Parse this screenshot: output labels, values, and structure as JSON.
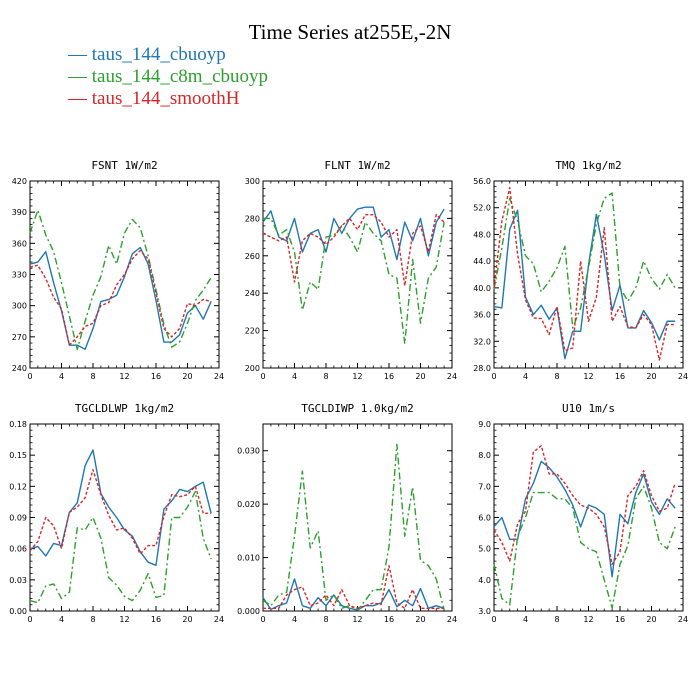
{
  "figure": {
    "title": "Time Series at255E,-2N",
    "legend": [
      {
        "label": "— taus_144_cbuoyp",
        "color": "#1f77b4"
      },
      {
        "label": "— taus_144_c8m_cbuoyp",
        "color": "#2ca02c"
      },
      {
        "label": "— taus_144_smoothH",
        "color": "#d62728"
      }
    ]
  },
  "chart_data": [
    {
      "type": "line",
      "title": "FSNT   1W/m2",
      "x": [
        0,
        1,
        2,
        3,
        4,
        5,
        6,
        7,
        8,
        9,
        10,
        11,
        12,
        13,
        14,
        15,
        16,
        17,
        18,
        19,
        20,
        21,
        22,
        23
      ],
      "xlim": [
        0,
        24
      ],
      "xticks": [
        "0",
        "4",
        "8",
        "12",
        "16",
        "20",
        "24"
      ],
      "ylim": [
        240,
        420
      ],
      "yticks": [
        "240",
        "270",
        "300",
        "330",
        "360",
        "390",
        "420"
      ],
      "series": [
        {
          "name": "taus_144_cbuoyp",
          "color": "#1f77b4",
          "dash": "",
          "values": [
            340,
            342,
            352,
            322,
            295,
            262,
            262,
            258,
            278,
            304,
            306,
            310,
            328,
            350,
            356,
            340,
            305,
            265,
            265,
            272,
            293,
            300,
            287,
            304
          ]
        },
        {
          "name": "taus_144_c8m_cbuoyp",
          "color": "#2ca02c",
          "dash": "7,3,2,3",
          "values": [
            370,
            392,
            368,
            352,
            322,
            290,
            258,
            285,
            310,
            328,
            358,
            340,
            370,
            383,
            375,
            348,
            315,
            282,
            260,
            265,
            283,
            305,
            315,
            327
          ]
        },
        {
          "name": "taus_144_smoothH",
          "color": "#d62728",
          "dash": "3,2",
          "values": [
            337,
            339,
            326,
            308,
            297,
            262,
            270,
            280,
            283,
            300,
            303,
            320,
            330,
            345,
            353,
            345,
            312,
            278,
            270,
            278,
            302,
            300,
            306,
            304
          ]
        }
      ]
    },
    {
      "type": "line",
      "title": "FLNT   1W/m2",
      "x": [
        0,
        1,
        2,
        3,
        4,
        5,
        6,
        7,
        8,
        9,
        10,
        11,
        12,
        13,
        14,
        15,
        16,
        17,
        18,
        19,
        20,
        21,
        22,
        23
      ],
      "xlim": [
        0,
        24
      ],
      "xticks": [
        "0",
        "4",
        "8",
        "12",
        "16",
        "20",
        "24"
      ],
      "ylim": [
        200,
        300
      ],
      "yticks": [
        "200",
        "220",
        "240",
        "260",
        "280",
        "300"
      ],
      "series": [
        {
          "name": "taus_144_cbuoyp",
          "color": "#1f77b4",
          "dash": "",
          "values": [
            278,
            284,
            270,
            268,
            280,
            262,
            272,
            274,
            262,
            280,
            272,
            280,
            285,
            286,
            286,
            270,
            274,
            258,
            278,
            268,
            280,
            260,
            278,
            285
          ]
        },
        {
          "name": "taus_144_c8m_cbuoyp",
          "color": "#2ca02c",
          "dash": "7,3,2,3",
          "values": [
            280,
            280,
            271,
            274,
            262,
            231,
            246,
            242,
            270,
            271,
            276,
            270,
            262,
            278,
            272,
            268,
            250,
            248,
            213,
            258,
            224,
            248,
            254,
            278
          ]
        },
        {
          "name": "taus_144_smoothH",
          "color": "#d62728",
          "dash": "3,2",
          "values": [
            272,
            270,
            268,
            270,
            246,
            268,
            272,
            270,
            266,
            270,
            276,
            280,
            274,
            282,
            282,
            278,
            270,
            274,
            244,
            272,
            276,
            262,
            282,
            278
          ]
        }
      ]
    },
    {
      "type": "line",
      "title": "TMQ   1kg/m2",
      "x": [
        0,
        1,
        2,
        3,
        4,
        5,
        6,
        7,
        8,
        9,
        10,
        11,
        12,
        13,
        14,
        15,
        16,
        17,
        18,
        19,
        20,
        21,
        22,
        23
      ],
      "xlim": [
        0,
        24
      ],
      "xticks": [
        "0",
        "4",
        "8",
        "12",
        "16",
        "20",
        "24"
      ],
      "ylim": [
        28,
        56
      ],
      "yticks": [
        "28.0",
        "32.0",
        "36.0",
        "40.0",
        "44.0",
        "48.0",
        "52.0",
        "56.0"
      ],
      "series": [
        {
          "name": "taus_144_cbuoyp",
          "color": "#1f77b4",
          "dash": "",
          "values": [
            37.2,
            37.0,
            48.8,
            51.6,
            38.6,
            36.0,
            37.4,
            35.3,
            37.0,
            29.4,
            33.5,
            33.5,
            43.4,
            51.0,
            45.0,
            36.6,
            40.4,
            34.0,
            34.0,
            36.6,
            34.8,
            32.2,
            35.0,
            35.0
          ]
        },
        {
          "name": "taus_144_c8m_cbuoyp",
          "color": "#2ca02c",
          "dash": "7,3,2,3",
          "values": [
            39.8,
            46.0,
            53.4,
            50.0,
            44.8,
            43.6,
            39.4,
            41.0,
            43.0,
            46.2,
            34.0,
            37.0,
            43.0,
            49.6,
            53.4,
            54.2,
            40.0,
            38.0,
            40.0,
            44.0,
            41.4,
            39.8,
            42.0,
            40.0
          ]
        },
        {
          "name": "taus_144_smoothH",
          "color": "#d62728",
          "dash": "3,2",
          "values": [
            40.0,
            50.0,
            55.0,
            45.0,
            38.2,
            35.5,
            35.4,
            33.0,
            37.2,
            30.6,
            31.0,
            44.0,
            35.0,
            38.6,
            49.0,
            35.0,
            37.2,
            34.2,
            34.0,
            36.0,
            34.5,
            29.2,
            34.5,
            34.5
          ]
        }
      ]
    },
    {
      "type": "line",
      "title": "TGCLDLWP   1kg/m2",
      "x": [
        0,
        1,
        2,
        3,
        4,
        5,
        6,
        7,
        8,
        9,
        10,
        11,
        12,
        13,
        14,
        15,
        16,
        17,
        18,
        19,
        20,
        21,
        22,
        23
      ],
      "xlim": [
        0,
        24
      ],
      "xticks": [
        "0",
        "4",
        "8",
        "12",
        "16",
        "20",
        "24"
      ],
      "ylim": [
        0,
        0.18
      ],
      "yticks": [
        "0.00",
        "0.03",
        "0.06",
        "0.09",
        "0.12",
        "0.15",
        "0.18"
      ],
      "series": [
        {
          "name": "taus_144_cbuoyp",
          "color": "#1f77b4",
          "dash": "",
          "values": [
            0.06,
            0.062,
            0.053,
            0.065,
            0.063,
            0.095,
            0.104,
            0.14,
            0.155,
            0.113,
            0.1,
            0.09,
            0.078,
            0.072,
            0.057,
            0.047,
            0.044,
            0.098,
            0.106,
            0.117,
            0.115,
            0.12,
            0.124,
            0.094
          ]
        },
        {
          "name": "taus_144_c8m_cbuoyp",
          "color": "#2ca02c",
          "dash": "7,3,2,3",
          "values": [
            0.01,
            0.008,
            0.024,
            0.026,
            0.012,
            0.018,
            0.08,
            0.078,
            0.09,
            0.07,
            0.032,
            0.025,
            0.014,
            0.01,
            0.02,
            0.036,
            0.013,
            0.015,
            0.09,
            0.09,
            0.1,
            0.115,
            0.07,
            0.05
          ]
        },
        {
          "name": "taus_144_smoothH",
          "color": "#d62728",
          "dash": "3,2",
          "values": [
            0.058,
            0.067,
            0.09,
            0.082,
            0.06,
            0.095,
            0.1,
            0.109,
            0.136,
            0.112,
            0.092,
            0.078,
            0.08,
            0.07,
            0.055,
            0.063,
            0.063,
            0.091,
            0.112,
            0.11,
            0.112,
            0.12,
            0.094,
            0.094
          ]
        }
      ]
    },
    {
      "type": "line",
      "title": "TGCLDIWP   1.0kg/m2",
      "x": [
        0,
        1,
        2,
        3,
        4,
        5,
        6,
        7,
        8,
        9,
        10,
        11,
        12,
        13,
        14,
        15,
        16,
        17,
        18,
        19,
        20,
        21,
        22,
        23
      ],
      "xlim": [
        0,
        24
      ],
      "xticks": [
        "0",
        "4",
        "8",
        "12",
        "16",
        "20",
        "24"
      ],
      "ylim": [
        0,
        0.035
      ],
      "yticks": [
        "0.000",
        "0.010",
        "0.020",
        "0.030"
      ],
      "series": [
        {
          "name": "taus_144_cbuoyp",
          "color": "#1f77b4",
          "dash": "",
          "values": [
            0.0025,
            0.0003,
            0.001,
            0.0015,
            0.006,
            0.001,
            0.0005,
            0.0025,
            0.001,
            0.003,
            0.001,
            0.0005,
            0.0002,
            0.001,
            0.001,
            0.0015,
            0.004,
            0.0008,
            0.002,
            0.001,
            0.0042,
            0.0005,
            0.001,
            0.0005
          ]
        },
        {
          "name": "taus_144_c8m_cbuoyp",
          "color": "#2ca02c",
          "dash": "7,3,2,3",
          "values": [
            0.002,
            0.001,
            0.003,
            0.0035,
            0.014,
            0.0262,
            0.0118,
            0.015,
            0.002,
            0.003,
            0.0005,
            0.001,
            0.0002,
            0.002,
            0.004,
            0.004,
            0.012,
            0.0312,
            0.014,
            0.0232,
            0.0095,
            0.0085,
            0.006,
            0.0002
          ]
        },
        {
          "name": "taus_144_smoothH",
          "color": "#d62728",
          "dash": "3,2",
          "values": [
            0.0005,
            0.0005,
            0.0005,
            0.003,
            0.004,
            0.0045,
            0.001,
            0.0015,
            0.003,
            0.001,
            0.004,
            0.001,
            0.0005,
            0.001,
            0.0015,
            0.0012,
            0.0085,
            0.0015,
            0.0005,
            0.004,
            0.0005,
            0.0005,
            0.0005,
            0.0005
          ]
        }
      ]
    },
    {
      "type": "line",
      "title": "U10   1m/s",
      "x": [
        0,
        1,
        2,
        3,
        4,
        5,
        6,
        7,
        8,
        9,
        10,
        11,
        12,
        13,
        14,
        15,
        16,
        17,
        18,
        19,
        20,
        21,
        22,
        23
      ],
      "xlim": [
        0,
        24
      ],
      "xticks": [
        "0",
        "4",
        "8",
        "12",
        "16",
        "20",
        "24"
      ],
      "ylim": [
        3,
        9
      ],
      "yticks": [
        "3.0",
        "4.0",
        "5.0",
        "6.0",
        "7.0",
        "8.0",
        "9.0"
      ],
      "series": [
        {
          "name": "taus_144_cbuoyp",
          "color": "#1f77b4",
          "dash": "",
          "values": [
            5.7,
            6.0,
            5.3,
            5.3,
            6.6,
            7.1,
            7.8,
            7.6,
            7.3,
            6.9,
            6.4,
            5.7,
            6.4,
            6.3,
            6.1,
            4.1,
            6.1,
            5.8,
            6.8,
            7.4,
            6.5,
            6.1,
            6.6,
            6.3
          ]
        },
        {
          "name": "taus_144_c8m_cbuoyp",
          "color": "#2ca02c",
          "dash": "7,3,2,3",
          "values": [
            4.5,
            3.4,
            3.2,
            5.4,
            6.0,
            6.8,
            6.8,
            6.8,
            6.6,
            6.6,
            6.3,
            5.2,
            5.0,
            4.9,
            4.0,
            3.1,
            4.5,
            5.1,
            6.6,
            7.0,
            6.3,
            5.2,
            5.0,
            5.7
          ]
        },
        {
          "name": "taus_144_smoothH",
          "color": "#d62728",
          "dash": "3,2",
          "values": [
            5.6,
            5.2,
            4.6,
            5.8,
            6.2,
            8.1,
            8.3,
            7.4,
            7.4,
            7.1,
            6.7,
            6.4,
            6.3,
            6.1,
            5.7,
            4.5,
            4.9,
            6.7,
            7.0,
            7.5,
            6.7,
            6.2,
            6.3,
            7.1
          ]
        }
      ]
    }
  ]
}
